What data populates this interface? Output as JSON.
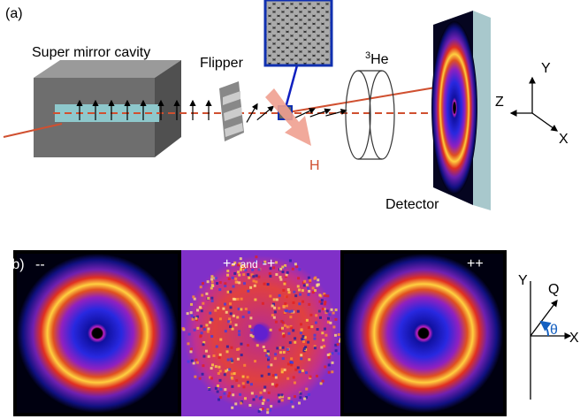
{
  "panel_a": {
    "label": "(a)",
    "cavity": "Super mirror cavity",
    "flipper": "Flipper",
    "helium": {
      "superscript": "3",
      "text": "He"
    },
    "field": "H",
    "detector": "Detector",
    "axes": {
      "y": "Y",
      "z": "Z",
      "x": "X"
    }
  },
  "panel_b": {
    "label": "(b)",
    "maps": [
      {
        "label": "--"
      },
      {
        "label": "+-",
        "connector": "and",
        "label2": "-+"
      },
      {
        "label": "++"
      }
    ],
    "axes": {
      "y": "Y",
      "q": "Q",
      "theta": "θ",
      "x": "X"
    }
  }
}
